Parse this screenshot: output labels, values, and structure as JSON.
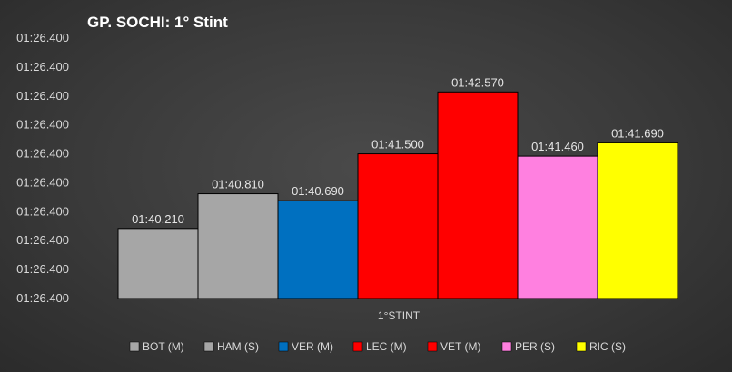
{
  "chart_data": {
    "type": "bar",
    "title": "GP. SOCHI: 1° Stint",
    "categories": [
      "1°STINT"
    ],
    "series": [
      {
        "name": "BOT (M)",
        "value": 100.21,
        "label": "01:40.210",
        "color": "#a6a6a6"
      },
      {
        "name": "HAM (S)",
        "value": 100.81,
        "label": "01:40.810",
        "color": "#a6a6a6"
      },
      {
        "name": "VER (M)",
        "value": 100.69,
        "label": "01:40.690",
        "color": "#0070c0"
      },
      {
        "name": "LEC (M)",
        "value": 101.5,
        "label": "01:41.500",
        "color": "#ff0000"
      },
      {
        "name": "VET (M)",
        "value": 102.57,
        "label": "01:42.570",
        "color": "#ff0000"
      },
      {
        "name": "PER (S)",
        "value": 101.46,
        "label": "01:41.460",
        "color": "#ff80e0"
      },
      {
        "name": "RIC (S)",
        "value": 101.69,
        "label": "01:41.690",
        "color": "#ffff00"
      }
    ],
    "ylim": [
      99.0,
      103.5
    ],
    "yticks": [
      "01:26.400",
      "01:26.400",
      "01:26.400",
      "01:26.400",
      "01:26.400",
      "01:26.400",
      "01:26.400",
      "01:26.400",
      "01:26.400",
      "01:26.400"
    ],
    "grid": false,
    "legend": "bottom"
  }
}
